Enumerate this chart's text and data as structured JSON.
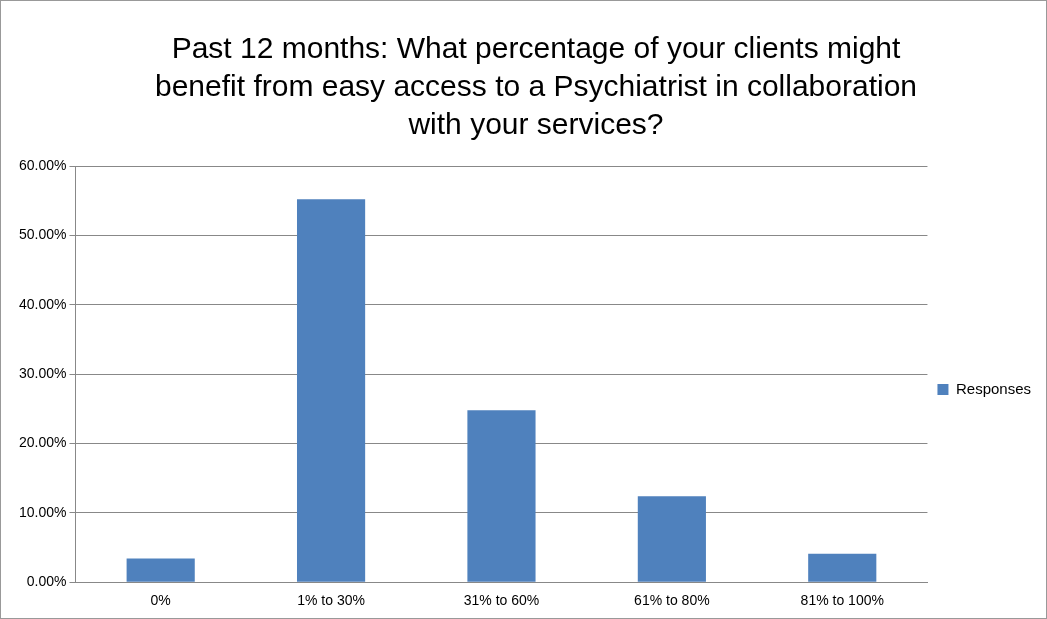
{
  "chart_data": {
    "type": "bar",
    "title": "Past 12 months: What percentage of your clients might benefit from easy access to a Psychiatrist in collaboration with your services?",
    "categories": [
      "0%",
      "1% to 30%",
      "31% to 60%",
      "61% to 80%",
      "81% to 100%"
    ],
    "series": [
      {
        "name": "Responses",
        "color": "#4f81bd",
        "values": [
          3.4,
          55.2,
          24.8,
          12.4,
          4.1
        ]
      }
    ],
    "ylim": [
      0,
      60
    ],
    "yticks": [
      {
        "value": 0,
        "label": "0.00%"
      },
      {
        "value": 10,
        "label": "10.00%"
      },
      {
        "value": 20,
        "label": "20.00%"
      },
      {
        "value": 30,
        "label": "30.00%"
      },
      {
        "value": 40,
        "label": "40.00%"
      },
      {
        "value": 50,
        "label": "50.00%"
      },
      {
        "value": 60,
        "label": "60.00%"
      }
    ],
    "grid": "y",
    "legend": "right"
  }
}
